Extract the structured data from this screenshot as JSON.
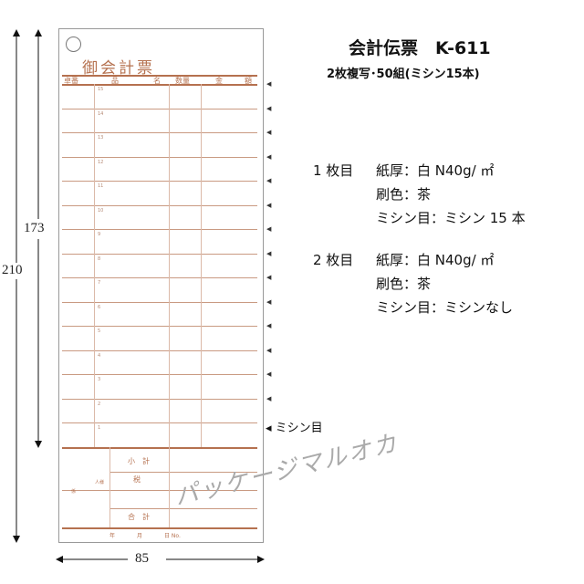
{
  "product": {
    "title": "会計伝票　K-611",
    "subtitle": "2枚複写･50組(ミシン15本)"
  },
  "slip": {
    "title": "御会計票",
    "headers": [
      "卓番",
      "品",
      "名",
      "数量",
      "金",
      "額"
    ],
    "row_numbers": [
      "15",
      "14",
      "13",
      "12",
      "11",
      "10",
      "9",
      "8",
      "7",
      "6",
      "5",
      "4",
      "3",
      "2",
      "1"
    ],
    "subtotal": "小　計",
    "tax": "税",
    "total": "合　計",
    "guests": "人様",
    "staff": "係",
    "date_line": [
      "年",
      "月",
      "日 No."
    ]
  },
  "perforation_label": "◂ ミシン目",
  "dimensions": {
    "height_total": "210",
    "height_perforated": "173",
    "width": "85"
  },
  "specs": [
    {
      "sheet": "1 枚目",
      "paper": "紙厚：白 N40g/ ㎡",
      "ink": "刷色：茶",
      "perf": "ミシン目：ミシン 15 本"
    },
    {
      "sheet": "2 枚目",
      "paper": "紙厚：白 N40g/ ㎡",
      "ink": "刷色：茶",
      "perf": "ミシン目：ミシンなし"
    }
  ],
  "watermark": "パッケージマルオカ",
  "colors": {
    "print": "#b5714f"
  }
}
